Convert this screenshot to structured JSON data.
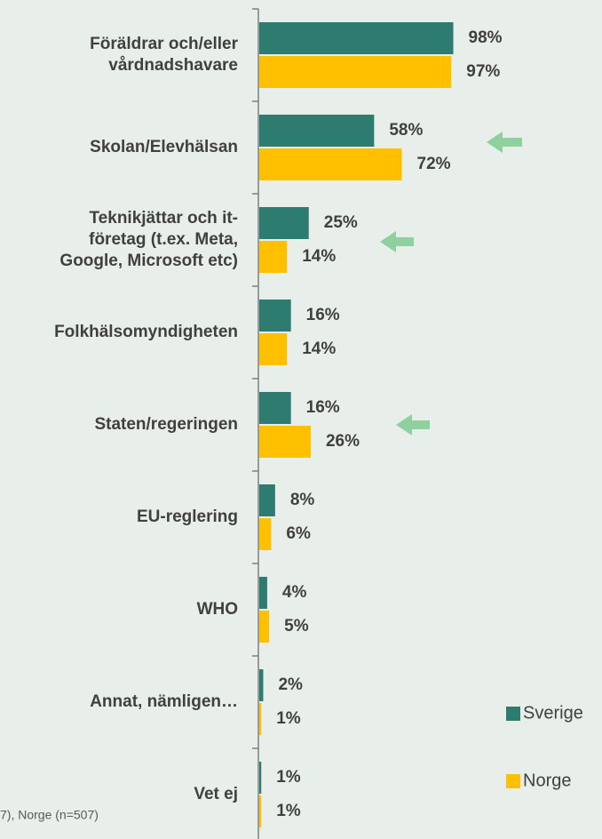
{
  "chart_data": {
    "type": "hbar",
    "categories": [
      "Föräldrar och/eller\nvårdnadshavare",
      "Skolan/Elevhälsan",
      "Teknikjättar och it-\nföretag (t.ex. Meta,\nGoogle, Microsoft etc)",
      "Folkhälsomyndigheten",
      "Staten/regeringen",
      "EU-reglering",
      "WHO",
      "Annat, nämligen…",
      "Vet ej"
    ],
    "series": [
      {
        "name": "Sverige",
        "color": "#2e7b70",
        "values": [
          98,
          58,
          25,
          16,
          16,
          8,
          4,
          2,
          1
        ],
        "value_labels": [
          "98%",
          "58%",
          "25%",
          "16%",
          "16%",
          "8%",
          "4%",
          "2%",
          "1%"
        ]
      },
      {
        "name": "Norge",
        "color": "#ffc000",
        "values": [
          97,
          72,
          14,
          14,
          26,
          6,
          5,
          1,
          1
        ],
        "value_labels": [
          "97%",
          "72%",
          "14%",
          "14%",
          "26%",
          "6%",
          "5%",
          "1%",
          "1%"
        ]
      }
    ],
    "xlim": [
      0,
      100
    ],
    "footnote": "7), Norge (n=507)"
  }
}
